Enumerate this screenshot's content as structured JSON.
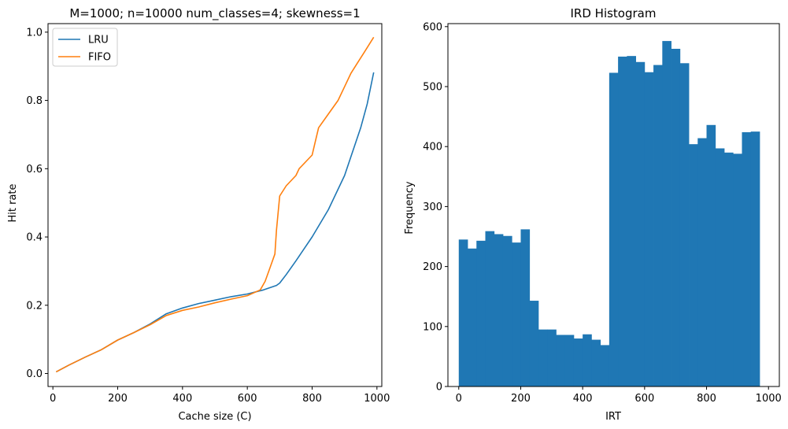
{
  "chart_data": [
    {
      "type": "line",
      "title": "M=1000; n=10000 num_classes=4; skewness=1",
      "xlabel": "Cache size (C)",
      "ylabel": "Hit rate",
      "xlim": [
        -15,
        1015
      ],
      "ylim": [
        -0.038,
        1.025
      ],
      "xticks": [
        0,
        200,
        400,
        600,
        800,
        1000
      ],
      "yticks": [
        0.0,
        0.2,
        0.4,
        0.6,
        0.8,
        1.0
      ],
      "ytick_labels": [
        "0.0",
        "0.2",
        "0.4",
        "0.6",
        "0.8",
        "1.0"
      ],
      "grid": false,
      "legend": "top-left",
      "series": [
        {
          "name": "LRU",
          "color": "#1f77b4",
          "x": [
            10,
            50,
            100,
            150,
            200,
            250,
            300,
            350,
            400,
            450,
            500,
            550,
            600,
            650,
            690,
            700,
            720,
            750,
            800,
            850,
            900,
            950,
            970,
            990
          ],
          "y": [
            0.005,
            0.025,
            0.048,
            0.07,
            0.098,
            0.12,
            0.145,
            0.175,
            0.192,
            0.205,
            0.215,
            0.225,
            0.233,
            0.245,
            0.258,
            0.265,
            0.29,
            0.33,
            0.4,
            0.48,
            0.58,
            0.72,
            0.79,
            0.882
          ]
        },
        {
          "name": "FIFO",
          "color": "#ff7f0e",
          "x": [
            10,
            50,
            100,
            150,
            200,
            250,
            300,
            350,
            400,
            450,
            500,
            550,
            600,
            640,
            655,
            670,
            685,
            690,
            700,
            720,
            750,
            760,
            800,
            810,
            820,
            850,
            880,
            900,
            920,
            940,
            960,
            990
          ],
          "y": [
            0.005,
            0.025,
            0.048,
            0.07,
            0.098,
            0.12,
            0.143,
            0.17,
            0.185,
            0.195,
            0.207,
            0.218,
            0.228,
            0.245,
            0.27,
            0.31,
            0.35,
            0.42,
            0.52,
            0.55,
            0.58,
            0.6,
            0.64,
            0.68,
            0.72,
            0.76,
            0.8,
            0.84,
            0.88,
            0.91,
            0.94,
            0.985
          ]
        }
      ]
    },
    {
      "type": "bar",
      "title": "IRD Histogram",
      "xlabel": "IRT",
      "ylabel": "Frequency",
      "xlim": [
        -35,
        1035
      ],
      "ylim": [
        0,
        605
      ],
      "xticks": [
        0,
        200,
        400,
        600,
        800,
        1000
      ],
      "yticks": [
        0,
        100,
        200,
        300,
        400,
        500,
        600
      ],
      "grid": false,
      "color": "#1f77b4",
      "bins_start": 0,
      "bin_width": 28.57,
      "values": [
        245,
        230,
        243,
        259,
        254,
        251,
        240,
        262,
        143,
        95,
        95,
        86,
        86,
        80,
        87,
        78,
        69,
        523,
        550,
        551,
        541,
        524,
        536,
        576,
        563,
        539,
        404,
        414,
        436,
        397,
        390,
        388,
        424,
        425
      ]
    }
  ]
}
